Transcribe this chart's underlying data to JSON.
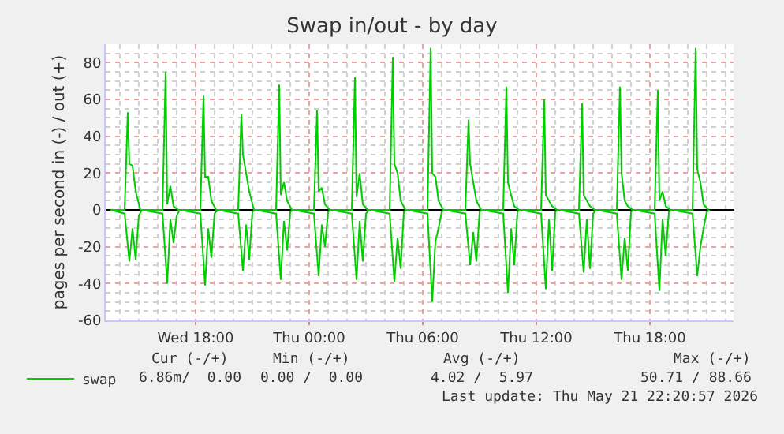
{
  "chart_data": {
    "type": "line",
    "title": "Swap in/out - by day",
    "ylabel": "pages per second in (-) / out (+)",
    "xlim": [
      "2026-05-20T13:15",
      "2026-05-21T22:25"
    ],
    "xticks": [
      {
        "value": "2026-05-20T18:00",
        "label": "Wed 18:00"
      },
      {
        "value": "2026-05-21T00:00",
        "label": "Thu 00:00"
      },
      {
        "value": "2026-05-21T06:00",
        "label": "Thu 06:00"
      },
      {
        "value": "2026-05-21T12:00",
        "label": "Thu 12:00"
      },
      {
        "value": "2026-05-21T18:00",
        "label": "Thu 18:00"
      }
    ],
    "ylim": [
      -60,
      90
    ],
    "yticks": [
      -60,
      -40,
      -20,
      0,
      20,
      40,
      60,
      80
    ],
    "grid": true,
    "legend": "bottom left",
    "series": [
      {
        "name": "swap",
        "color": "#00cc00",
        "x": [
          "2026-05-20T13:30",
          "2026-05-20T14:15",
          "2026-05-20T14:25",
          "2026-05-20T14:30",
          "2026-05-20T14:40",
          "2026-05-20T14:50",
          "2026-05-20T15:05",
          "2026-05-20T16:15",
          "2026-05-20T16:25",
          "2026-05-20T16:30",
          "2026-05-20T16:40",
          "2026-05-20T16:50",
          "2026-05-20T17:05",
          "2026-05-20T18:15",
          "2026-05-20T18:25",
          "2026-05-20T18:30",
          "2026-05-20T18:40",
          "2026-05-20T18:50",
          "2026-05-20T19:05",
          "2026-05-20T20:15",
          "2026-05-20T20:25",
          "2026-05-20T20:30",
          "2026-05-20T20:40",
          "2026-05-20T20:50",
          "2026-05-20T21:05",
          "2026-05-20T22:15",
          "2026-05-20T22:25",
          "2026-05-20T22:30",
          "2026-05-20T22:40",
          "2026-05-20T22:50",
          "2026-05-20T23:05",
          "2026-05-21T00:15",
          "2026-05-21T00:25",
          "2026-05-21T00:30",
          "2026-05-21T00:40",
          "2026-05-21T00:50",
          "2026-05-21T01:05",
          "2026-05-21T02:15",
          "2026-05-21T02:25",
          "2026-05-21T02:30",
          "2026-05-21T02:40",
          "2026-05-21T02:50",
          "2026-05-21T03:05",
          "2026-05-21T04:15",
          "2026-05-21T04:25",
          "2026-05-21T04:30",
          "2026-05-21T04:40",
          "2026-05-21T04:50",
          "2026-05-21T05:05",
          "2026-05-21T06:15",
          "2026-05-21T06:25",
          "2026-05-21T06:30",
          "2026-05-21T06:40",
          "2026-05-21T06:50",
          "2026-05-21T07:05",
          "2026-05-21T08:15",
          "2026-05-21T08:25",
          "2026-05-21T08:30",
          "2026-05-21T08:40",
          "2026-05-21T08:50",
          "2026-05-21T09:05",
          "2026-05-21T10:15",
          "2026-05-21T10:25",
          "2026-05-21T10:30",
          "2026-05-21T10:40",
          "2026-05-21T10:50",
          "2026-05-21T11:05",
          "2026-05-21T12:15",
          "2026-05-21T12:25",
          "2026-05-21T12:30",
          "2026-05-21T12:40",
          "2026-05-21T12:50",
          "2026-05-21T13:05",
          "2026-05-21T14:15",
          "2026-05-21T14:25",
          "2026-05-21T14:30",
          "2026-05-21T14:40",
          "2026-05-21T14:50",
          "2026-05-21T15:05",
          "2026-05-21T16:15",
          "2026-05-21T16:25",
          "2026-05-21T16:30",
          "2026-05-21T16:40",
          "2026-05-21T16:50",
          "2026-05-21T17:05",
          "2026-05-21T18:15",
          "2026-05-21T18:25",
          "2026-05-21T18:30",
          "2026-05-21T18:40",
          "2026-05-21T18:50",
          "2026-05-21T19:05",
          "2026-05-21T20:15",
          "2026-05-21T20:25",
          "2026-05-21T20:30",
          "2026-05-21T20:40",
          "2026-05-21T20:50",
          "2026-05-21T21:05"
        ],
        "values": [
          0,
          0,
          53,
          25,
          24,
          10,
          0,
          0,
          75,
          3,
          13,
          2,
          0,
          0,
          62,
          18,
          18,
          5,
          0,
          0,
          52,
          30,
          20,
          10,
          0,
          0,
          68,
          8,
          15,
          5,
          0,
          0,
          54,
          10,
          12,
          3,
          0,
          0,
          72,
          7,
          20,
          3,
          0,
          0,
          83,
          25,
          20,
          5,
          0,
          0,
          88,
          20,
          18,
          5,
          0,
          0,
          49,
          25,
          15,
          5,
          0,
          0,
          67,
          15,
          8,
          2,
          0,
          0,
          60,
          8,
          5,
          2,
          0,
          0,
          58,
          8,
          5,
          2,
          0,
          0,
          67,
          20,
          5,
          2,
          0,
          0,
          65,
          5,
          10,
          2,
          0,
          0,
          88,
          22,
          15,
          3,
          0
        ]
      },
      {
        "color": "#00cc00",
        "x": [
          "2026-05-20T13:30",
          "2026-05-20T14:15",
          "2026-05-20T14:30",
          "2026-05-20T14:40",
          "2026-05-20T14:50",
          "2026-05-20T15:00",
          "2026-05-20T15:10",
          "2026-05-20T16:15",
          "2026-05-20T16:30",
          "2026-05-20T16:40",
          "2026-05-20T16:50",
          "2026-05-20T17:00",
          "2026-05-20T17:10",
          "2026-05-20T18:15",
          "2026-05-20T18:30",
          "2026-05-20T18:40",
          "2026-05-20T18:50",
          "2026-05-20T19:00",
          "2026-05-20T19:10",
          "2026-05-20T20:15",
          "2026-05-20T20:30",
          "2026-05-20T20:40",
          "2026-05-20T20:50",
          "2026-05-20T21:00",
          "2026-05-20T21:10",
          "2026-05-20T22:15",
          "2026-05-20T22:30",
          "2026-05-20T22:40",
          "2026-05-20T22:50",
          "2026-05-20T23:00",
          "2026-05-20T23:10",
          "2026-05-21T00:15",
          "2026-05-21T00:30",
          "2026-05-21T00:40",
          "2026-05-21T00:50",
          "2026-05-21T01:00",
          "2026-05-21T01:10",
          "2026-05-21T02:15",
          "2026-05-21T02:30",
          "2026-05-21T02:40",
          "2026-05-21T02:50",
          "2026-05-21T03:00",
          "2026-05-21T03:10",
          "2026-05-21T04:15",
          "2026-05-21T04:30",
          "2026-05-21T04:40",
          "2026-05-21T04:50",
          "2026-05-21T05:00",
          "2026-05-21T05:10",
          "2026-05-21T06:15",
          "2026-05-21T06:30",
          "2026-05-21T06:40",
          "2026-05-21T06:50",
          "2026-05-21T07:00",
          "2026-05-21T07:10",
          "2026-05-21T08:15",
          "2026-05-21T08:30",
          "2026-05-21T08:40",
          "2026-05-21T08:50",
          "2026-05-21T09:00",
          "2026-05-21T09:10",
          "2026-05-21T10:15",
          "2026-05-21T10:30",
          "2026-05-21T10:40",
          "2026-05-21T10:50",
          "2026-05-21T11:00",
          "2026-05-21T11:10",
          "2026-05-21T12:15",
          "2026-05-21T12:30",
          "2026-05-21T12:40",
          "2026-05-21T12:50",
          "2026-05-21T13:00",
          "2026-05-21T13:10",
          "2026-05-21T14:15",
          "2026-05-21T14:30",
          "2026-05-21T14:40",
          "2026-05-21T14:50",
          "2026-05-21T15:00",
          "2026-05-21T15:10",
          "2026-05-21T16:15",
          "2026-05-21T16:30",
          "2026-05-21T16:40",
          "2026-05-21T16:50",
          "2026-05-21T17:00",
          "2026-05-21T17:10",
          "2026-05-21T18:15",
          "2026-05-21T18:30",
          "2026-05-21T18:40",
          "2026-05-21T18:50",
          "2026-05-21T19:00",
          "2026-05-21T19:10",
          "2026-05-21T20:15",
          "2026-05-21T20:30",
          "2026-05-21T20:40",
          "2026-05-21T20:50",
          "2026-05-21T21:00",
          "2026-05-21T21:10"
        ],
        "values": [
          0,
          -2,
          -28,
          -10,
          -27,
          -3,
          0,
          -2,
          -40,
          -5,
          -18,
          -3,
          0,
          -2,
          -41,
          -10,
          -26,
          -2,
          0,
          -2,
          -33,
          -8,
          -27,
          -1,
          0,
          -2,
          -38,
          -6,
          -22,
          -1,
          0,
          -2,
          -36,
          -8,
          -20,
          -1,
          0,
          -2,
          -38,
          -6,
          -28,
          -2,
          0,
          -2,
          -39,
          -15,
          -32,
          -1,
          0,
          -2,
          -50,
          -17,
          -10,
          -1,
          0,
          -2,
          -30,
          -12,
          -28,
          -1,
          0,
          -2,
          -45,
          -10,
          -30,
          -1,
          0,
          -2,
          -43,
          -5,
          -33,
          -1,
          0,
          -2,
          -34,
          -5,
          -32,
          -2,
          0,
          -2,
          -38,
          -15,
          -33,
          -1,
          0,
          -2,
          -44,
          -5,
          -25,
          -1,
          0,
          -2,
          -36,
          -20,
          -10,
          -1,
          0
        ]
      }
    ],
    "annotations": [
      "Cur (-/+)",
      "Min (-/+)",
      "Avg (-/+)",
      "Max (-/+)",
      "6.86m/  0.00",
      "0.00 /  0.00",
      "4.02 /  5.97",
      "50.71 / 88.66",
      "Last update: Thu May 21 22:20:57 2026"
    ]
  }
}
